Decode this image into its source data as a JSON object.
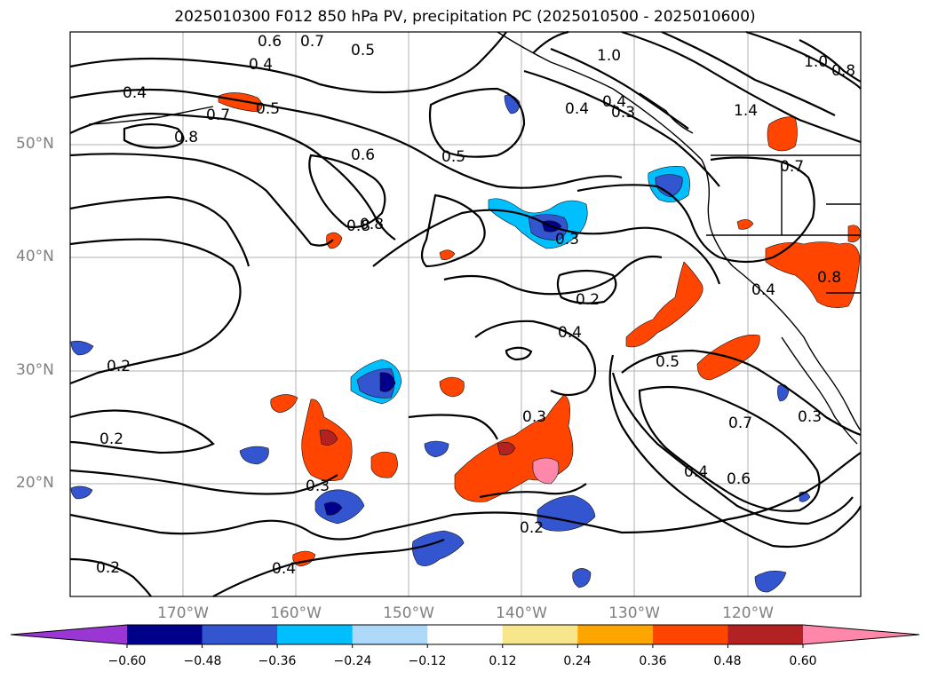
{
  "title": "2025010300 F012 850 hPa PV, precipitation PC (2025010500 - 2025010600)",
  "lat_labels": [
    "50°N",
    "40°N",
    "30°N",
    "20°N"
  ],
  "lon_labels": [
    "170°W",
    "160°W",
    "150°W",
    "140°W",
    "130°W",
    "120°W"
  ],
  "colorbar": {
    "ticks": [
      "−0.60",
      "−0.48",
      "−0.36",
      "−0.24",
      "−0.12",
      "0.12",
      "0.24",
      "0.36",
      "0.48",
      "0.60"
    ],
    "colors": [
      "#9a37d4",
      "#00008b",
      "#3455d0",
      "#00bfff",
      "#add8f7",
      "#ffffff",
      "#f8e68c",
      "#ffa500",
      "#ff4500",
      "#b22222",
      "#ff88aa"
    ],
    "extend": "both"
  },
  "contour_labels": [
    "0.4",
    "0.5",
    "0.6",
    "0.7",
    "0.8",
    "0.4",
    "0.7",
    "0.5",
    "0.8",
    "0.6",
    "0.5",
    "0.8",
    "0.4",
    "0.3",
    "0.2",
    "0.4",
    "0.5",
    "0.7",
    "0.3",
    "0.3",
    "0.2",
    "0.2",
    "0.2",
    "0.4",
    "0.6",
    "0.2",
    "0.3",
    "0.4",
    "0.8",
    "1.0",
    "1.4",
    "0.7",
    "0.4",
    "0.3",
    "1.0",
    "0.8",
    "0.4"
  ],
  "map": {
    "projection": "PlateCarree",
    "extent": {
      "lon_min": -180,
      "lon_max": -110,
      "lat_min": 10,
      "lat_max": 60
    },
    "gridlines": true
  }
}
